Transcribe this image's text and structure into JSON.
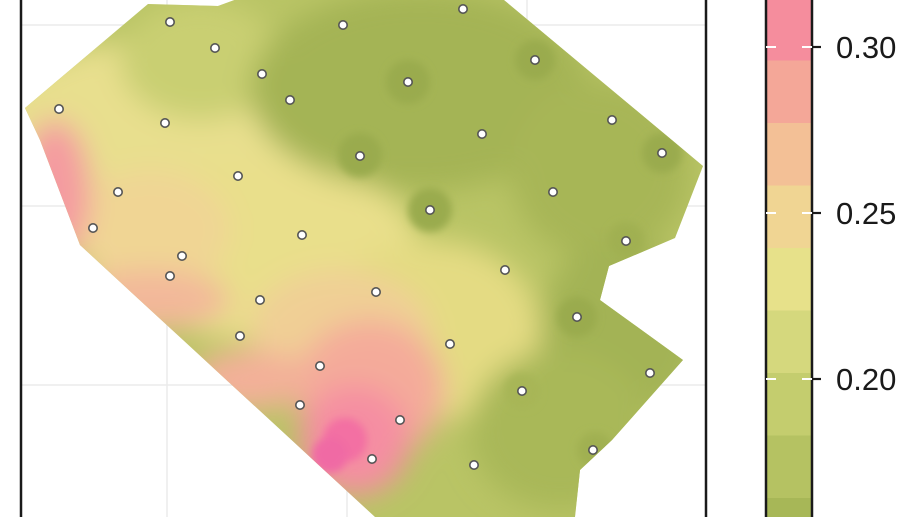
{
  "legend": {
    "title": "",
    "tick_labels": [
      {
        "value": 0.2,
        "text": "0.20"
      },
      {
        "value": 0.25,
        "text": "0.25"
      },
      {
        "value": 0.3,
        "text": "0.30"
      }
    ],
    "color_bands": [
      "#9aab4e",
      "#a7b757",
      "#b5c262",
      "#c4cd6e",
      "#d5d87d",
      "#e7e18a",
      "#f0d593",
      "#f3c096",
      "#f4a798",
      "#f58d9d"
    ]
  },
  "map": {
    "panel_background": "#ffffff",
    "grid_color": "#ebebeb",
    "point_fill": "#ffffff",
    "point_stroke": "#555555"
  }
}
